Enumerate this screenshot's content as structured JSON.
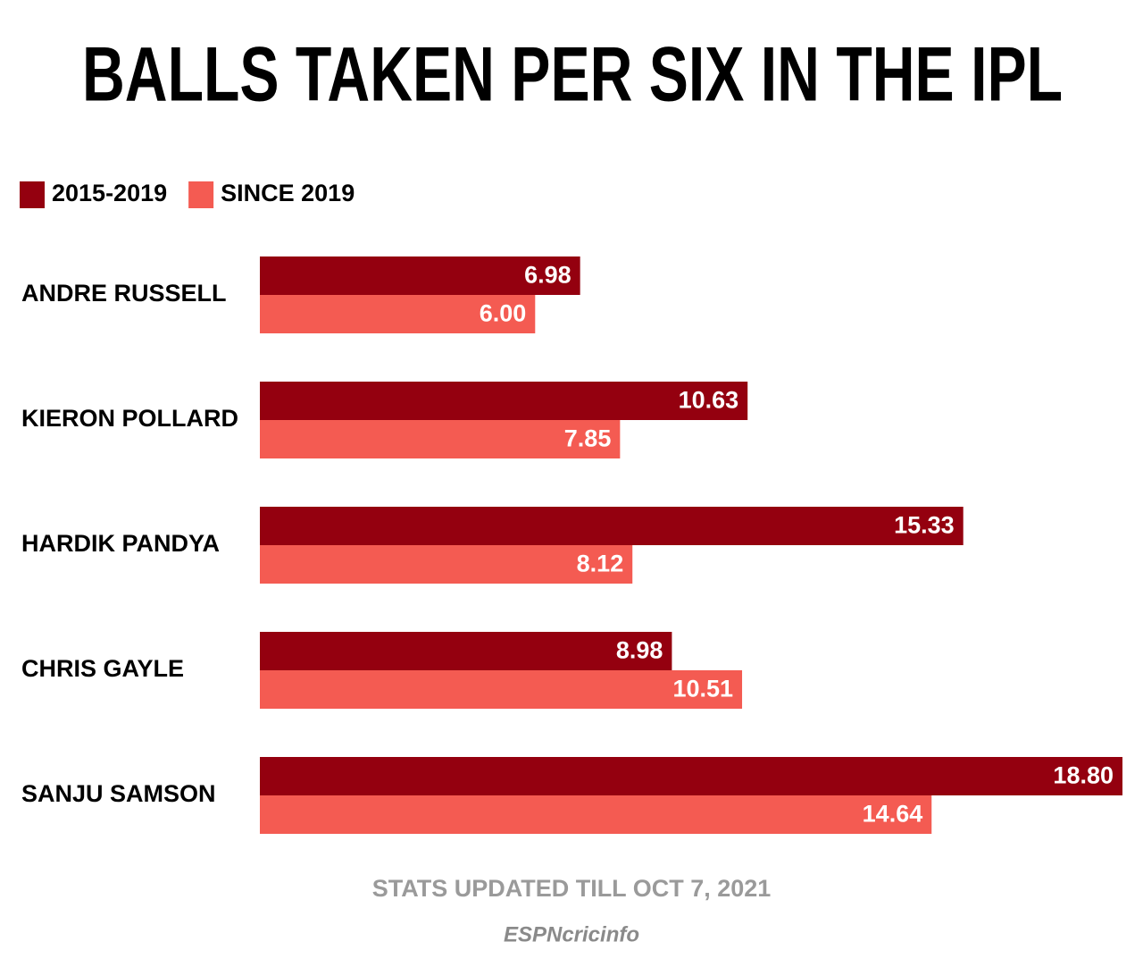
{
  "chart_data": {
    "type": "bar",
    "orientation": "horizontal",
    "title": "BALLS TAKEN PER SIX IN THE IPL",
    "categories": [
      "ANDRE RUSSELL",
      "KIERON POLLARD",
      "HARDIK PANDYA",
      "CHRIS GAYLE",
      "SANJU SAMSON"
    ],
    "series": [
      {
        "name": "2015-2019",
        "color": "#94000f",
        "values": [
          6.98,
          10.63,
          15.33,
          8.98,
          18.8
        ],
        "value_labels": [
          "6.98",
          "10.63",
          "15.33",
          "8.98",
          "18.80"
        ]
      },
      {
        "name": "SINCE 2019",
        "color": "#f45b52",
        "values": [
          6,
          7.85,
          8.12,
          10.51,
          14.64
        ],
        "value_labels": [
          "6.00",
          "7.85",
          "8.12",
          "10.51",
          "14.64"
        ]
      }
    ],
    "legend": "top-left",
    "footnote": "STATS UPDATED TILL OCT 7, 2021",
    "source": "ESPNcricinfo"
  }
}
